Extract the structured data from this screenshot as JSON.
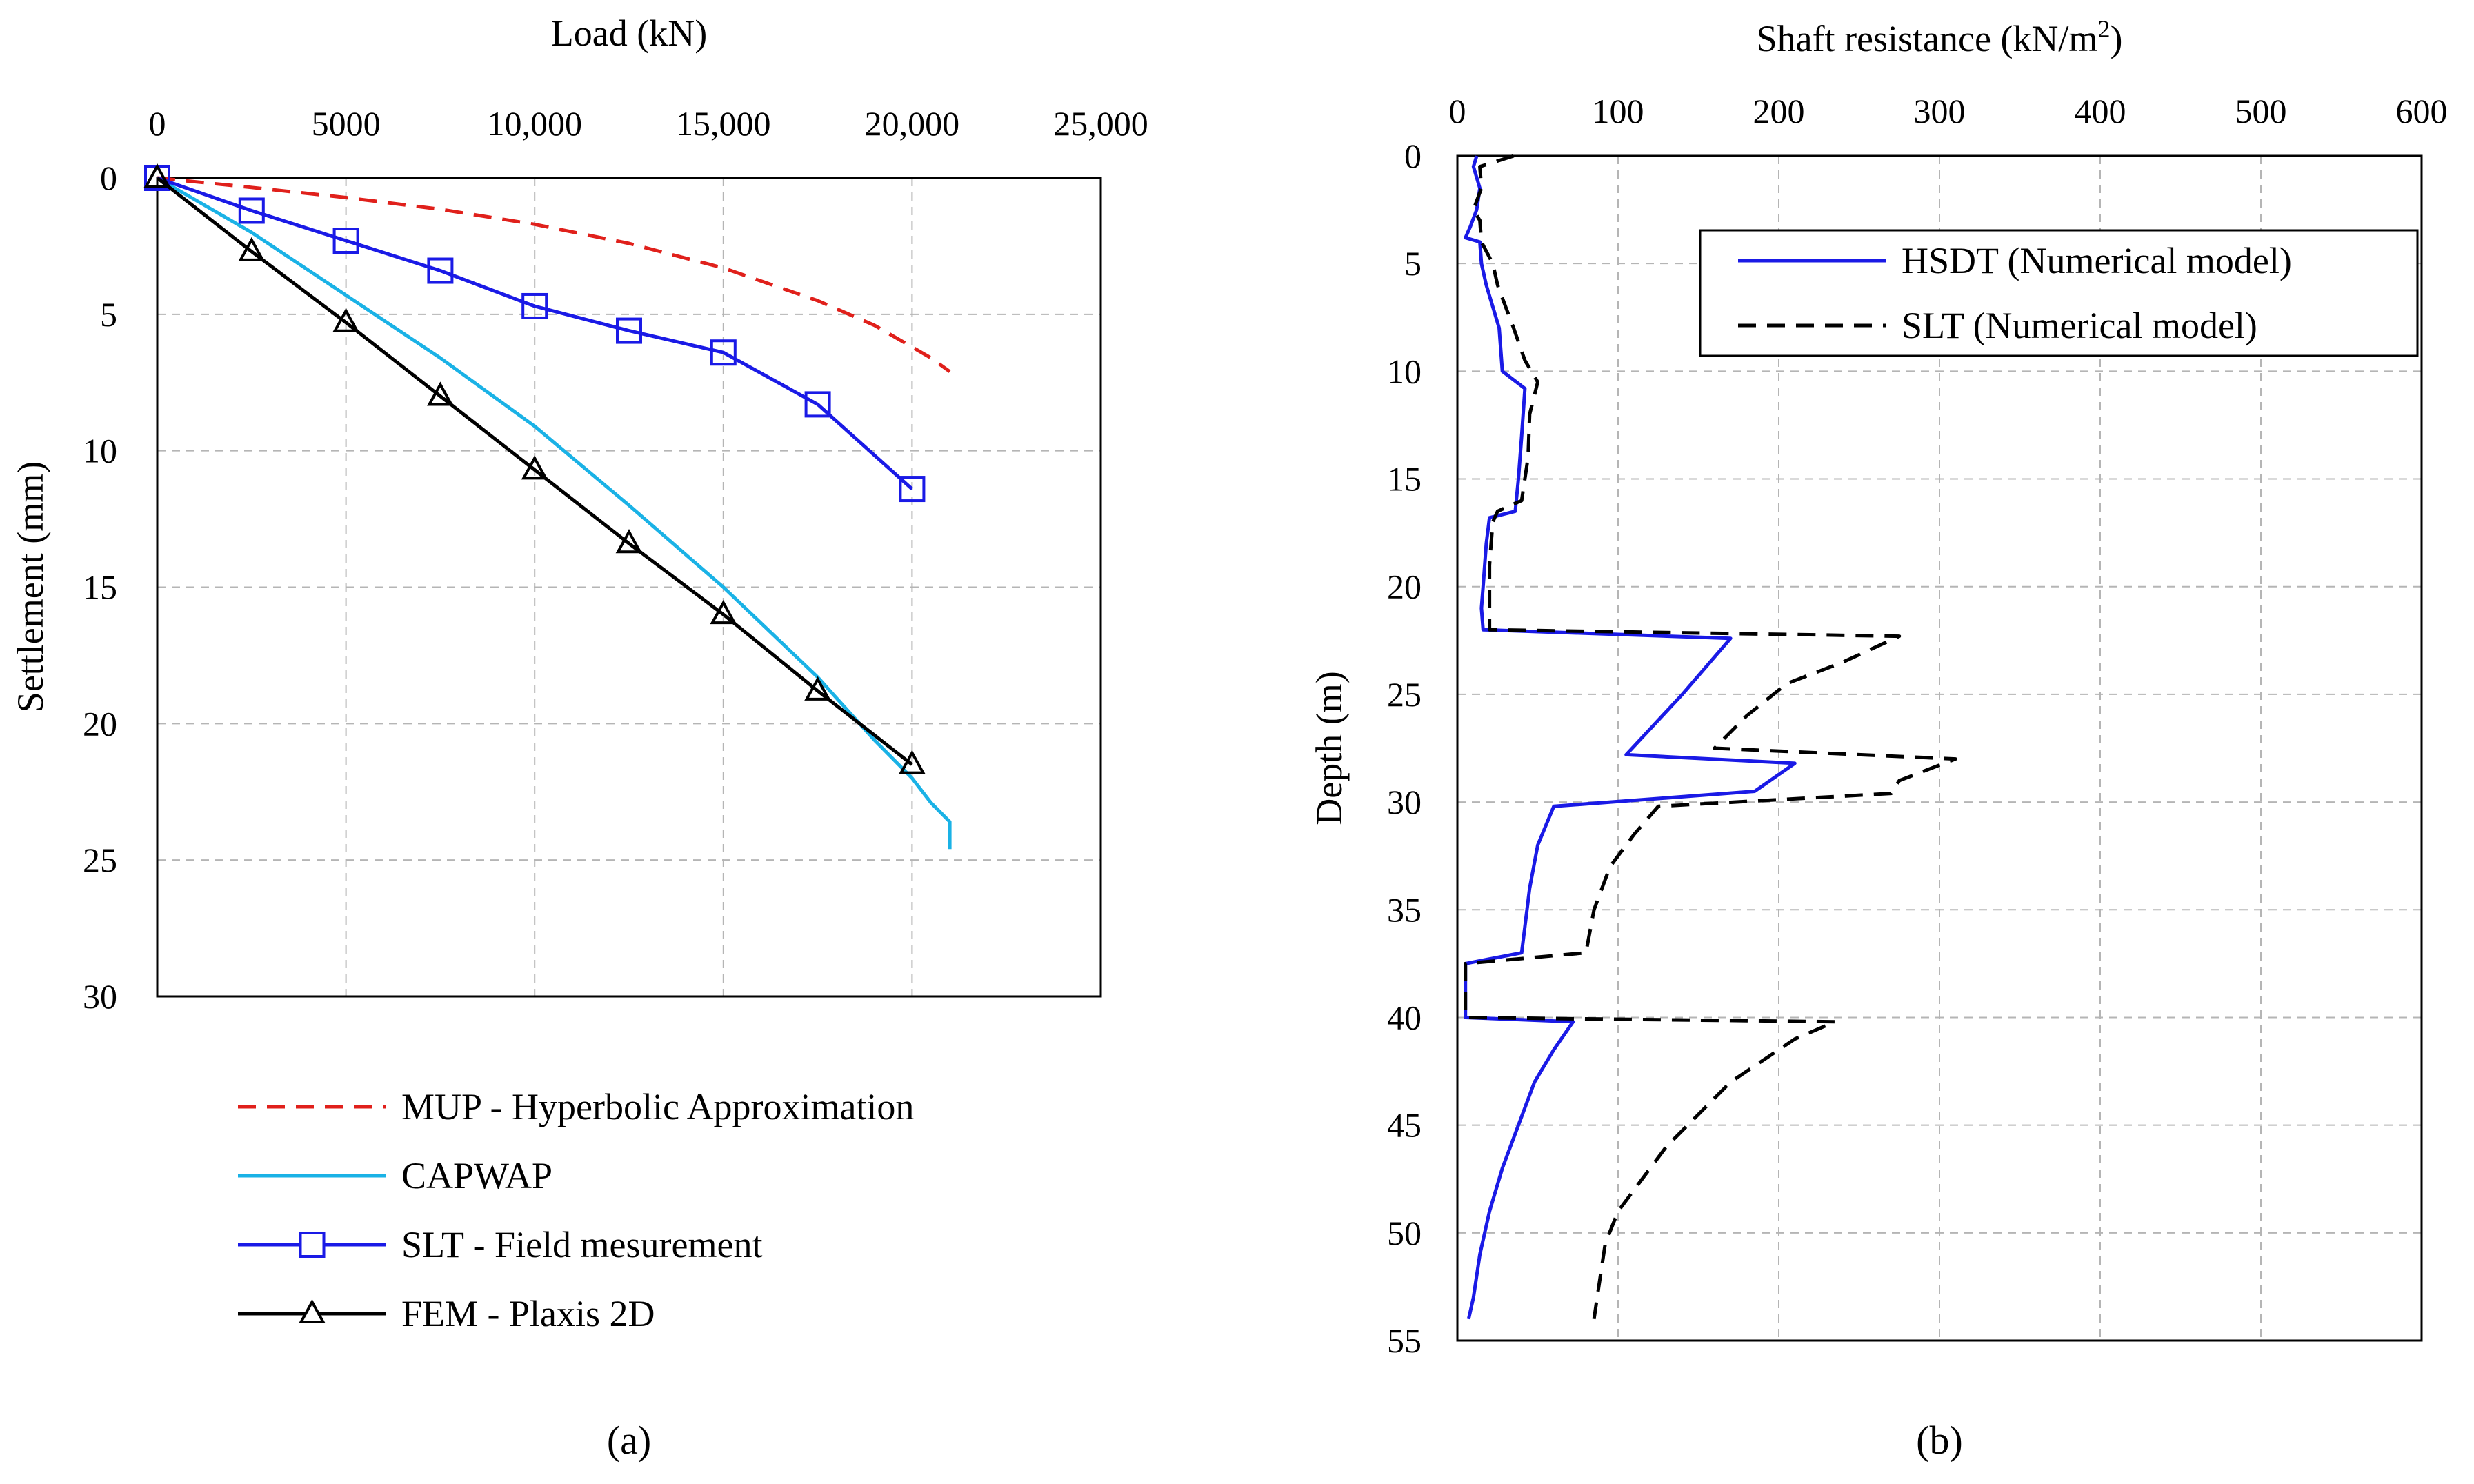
{
  "chart_data": [
    {
      "type": "line",
      "panel_label": "(a)",
      "xlabel": "Load (kN)",
      "ylabel": "Settlement (mm)",
      "xlim": [
        0,
        25000
      ],
      "ylim": [
        0,
        30
      ],
      "y_inverted": true,
      "x_axis_position": "top",
      "grid": true,
      "xticks": [
        0,
        5000,
        10000,
        15000,
        20000,
        25000
      ],
      "xtick_labels": [
        "0",
        "5000",
        "10,000",
        "15,000",
        "20,000",
        "25,000"
      ],
      "yticks": [
        0,
        5,
        10,
        15,
        20,
        25,
        30
      ],
      "ytick_labels": [
        "0",
        "5",
        "10",
        "15",
        "20",
        "25",
        "30"
      ],
      "legend_position": "below",
      "series": [
        {
          "name": "MUP - Hyperbolic Approximation",
          "color": "#e0201b",
          "dash": "dashed",
          "marker": "none",
          "x": [
            0,
            2500,
            5000,
            7500,
            10000,
            12500,
            15000,
            17500,
            19000,
            20500,
            21000
          ],
          "y": [
            0,
            0.35,
            0.72,
            1.15,
            1.7,
            2.4,
            3.3,
            4.5,
            5.4,
            6.6,
            7.1
          ]
        },
        {
          "name": "CAPWAP",
          "color": "#1ab2e6",
          "dash": "solid",
          "marker": "none",
          "x": [
            0,
            2500,
            5000,
            7500,
            10000,
            12500,
            15000,
            17500,
            19000,
            20000,
            20500,
            21000,
            21000
          ],
          "y": [
            0,
            2.0,
            4.3,
            6.6,
            9.1,
            12.0,
            15.0,
            18.3,
            20.6,
            22.0,
            22.9,
            23.6,
            24.6
          ]
        },
        {
          "name": "SLT - Field mesurement",
          "color": "#1a1ae6",
          "dash": "solid",
          "marker": "square",
          "x": [
            0,
            2500,
            5000,
            7500,
            10000,
            12500,
            15000,
            17500,
            20000
          ],
          "y": [
            0,
            1.2,
            2.3,
            3.4,
            4.7,
            5.6,
            6.4,
            8.3,
            11.4
          ]
        },
        {
          "name": "FEM - Plaxis 2D",
          "color": "#000000",
          "dash": "solid",
          "marker": "triangle",
          "x": [
            0,
            2500,
            5000,
            7500,
            10000,
            12500,
            15000,
            17500,
            20000
          ],
          "y": [
            0,
            2.7,
            5.3,
            8.0,
            10.7,
            13.4,
            16.0,
            18.8,
            21.5
          ]
        }
      ]
    },
    {
      "type": "line",
      "panel_label": "(b)",
      "xlabel": "Shaft resistance (kN/m",
      "xlabel_sup": "2",
      "xlabel_end": ")",
      "ylabel": "Depth (m)",
      "xlim": [
        0,
        600
      ],
      "ylim": [
        0,
        55
      ],
      "y_inverted": true,
      "x_axis_position": "top",
      "grid": true,
      "xticks": [
        0,
        100,
        200,
        300,
        400,
        500,
        600
      ],
      "xtick_labels": [
        "0",
        "100",
        "200",
        "300",
        "400",
        "500",
        "600"
      ],
      "yticks": [
        0,
        5,
        10,
        15,
        20,
        25,
        30,
        35,
        40,
        45,
        50,
        55
      ],
      "ytick_labels": [
        "0",
        "5",
        "10",
        "15",
        "20",
        "25",
        "30",
        "35",
        "40",
        "45",
        "50",
        "55"
      ],
      "legend_position": "top-right",
      "series": [
        {
          "name": "HSDT (Numerical model)",
          "color": "#1a1ae6",
          "dash": "solid",
          "x": [
            12,
            10,
            14,
            12,
            8,
            5,
            14,
            15,
            18,
            22,
            26,
            28,
            42,
            40,
            38,
            36,
            20,
            18,
            16,
            15,
            16,
            170,
            140,
            105,
            210,
            185,
            60,
            50,
            45,
            40,
            5,
            5,
            5,
            72,
            60,
            48,
            38,
            28,
            20,
            14,
            10,
            7
          ],
          "y": [
            0,
            0.5,
            1.5,
            2.5,
            3.3,
            3.8,
            4,
            5,
            6,
            7,
            8,
            10,
            10.8,
            13,
            15,
            16.5,
            16.8,
            18,
            20,
            21,
            22,
            22.4,
            25,
            27.8,
            28.2,
            29.5,
            30.2,
            32,
            34,
            37,
            37.5,
            39,
            40,
            40.2,
            41.5,
            43,
            45,
            47,
            49,
            51,
            53,
            54
          ]
        },
        {
          "name": "SLT (Numerical model)",
          "color": "#000000",
          "dash": "dashed",
          "x": [
            35,
            14,
            15,
            10,
            14,
            15,
            22,
            25,
            30,
            35,
            42,
            50,
            45,
            44,
            40,
            25,
            22,
            20,
            20,
            20,
            275,
            240,
            205,
            180,
            160,
            310,
            275,
            270,
            125,
            110,
            95,
            85,
            80,
            5,
            5,
            5,
            235,
            210,
            190,
            170,
            150,
            130,
            115,
            100,
            92,
            88,
            85
          ],
          "y": [
            0,
            0.5,
            1.5,
            2.5,
            3,
            4,
            5,
            6,
            7,
            8,
            9.5,
            10.5,
            12,
            14,
            16,
            16.5,
            17,
            19,
            21,
            22,
            22.3,
            23.5,
            24.5,
            26,
            27.5,
            28,
            29,
            29.6,
            30.2,
            31.5,
            33,
            35,
            37,
            37.5,
            39,
            40,
            40.2,
            41,
            42,
            43,
            44.5,
            46,
            47.5,
            49,
            50.5,
            52.5,
            54
          ]
        }
      ]
    }
  ]
}
